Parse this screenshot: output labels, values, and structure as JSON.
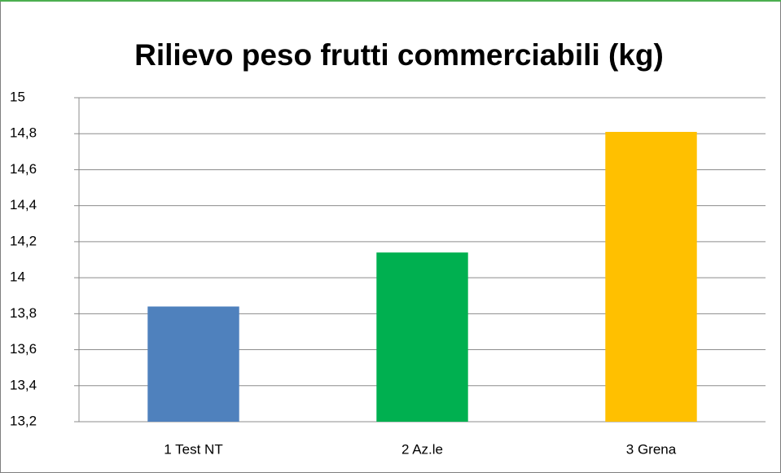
{
  "chart_data": {
    "type": "bar",
    "title": "Rilievo peso frutti commerciabili (kg)",
    "categories": [
      "1 Test NT",
      "2 Az.le",
      "3 Grena"
    ],
    "values": [
      13.84,
      14.14,
      14.81
    ],
    "colors": [
      "#4f81bd",
      "#00b050",
      "#ffc000"
    ],
    "ylim": [
      13.2,
      15
    ],
    "yticks": [
      {
        "value": 13.2,
        "label": "13,2"
      },
      {
        "value": 13.4,
        "label": "13,4"
      },
      {
        "value": 13.6,
        "label": "13,6"
      },
      {
        "value": 13.8,
        "label": "13,8"
      },
      14,
      {
        "value": 14.2,
        "label": "14,2"
      },
      {
        "value": 14.4,
        "label": "14,4"
      },
      {
        "value": 14.6,
        "label": "14,6"
      },
      {
        "value": 14.8,
        "label": "14,8"
      },
      15
    ],
    "grid": true
  }
}
